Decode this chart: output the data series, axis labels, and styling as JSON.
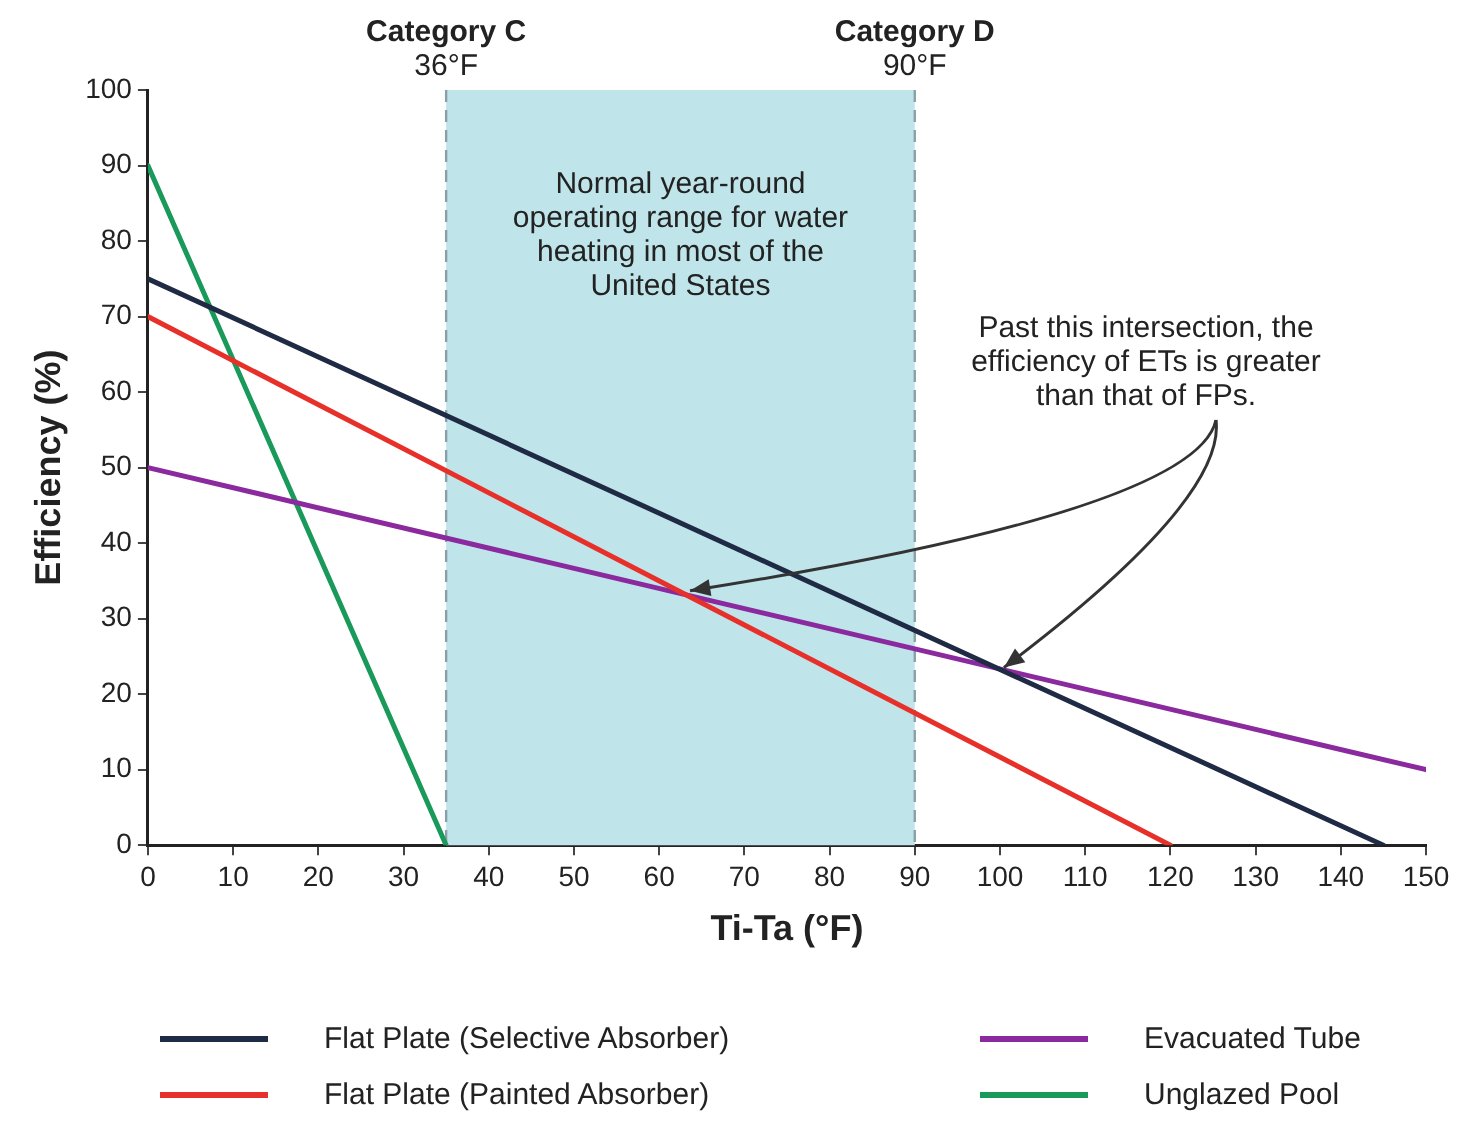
{
  "chart_data": {
    "type": "line",
    "xlabel": "Ti-Ta (°F)",
    "ylabel": "Efficiency (%)",
    "xlim": [
      0,
      150
    ],
    "xticks": [
      0,
      10,
      20,
      30,
      40,
      50,
      60,
      70,
      80,
      90,
      100,
      110,
      120,
      130,
      140,
      150
    ],
    "ylim": [
      0,
      100
    ],
    "yticks": [
      0,
      10,
      20,
      30,
      40,
      50,
      60,
      70,
      80,
      90,
      100
    ],
    "grid": false,
    "legend": "bottom",
    "marker": "none",
    "line_style": "solid",
    "series": [
      {
        "name": "Flat Plate (Selective Absorber)",
        "color": "#1f2a44",
        "x": [
          0,
          145
        ],
        "values": [
          75,
          0
        ]
      },
      {
        "name": "Flat Plate (Painted Absorber)",
        "color": "#e8302a",
        "x": [
          0,
          120
        ],
        "values": [
          70,
          0
        ]
      },
      {
        "name": "Evacuated Tube",
        "color": "#8b2a9e",
        "x": [
          0,
          150
        ],
        "values": [
          50,
          10
        ]
      },
      {
        "name": "Unglazed Pool",
        "color": "#1a9a5a",
        "x": [
          0,
          35
        ],
        "values": [
          90,
          0
        ]
      }
    ],
    "bands": [
      {
        "axis": "x",
        "from": 35,
        "to": 90,
        "color": "#bfe5ea",
        "label": "Normal year-round operating range for water heating in most of the United States"
      }
    ],
    "ref_lines": [
      {
        "axis": "x",
        "value": 35,
        "label": "Category C\n36°F",
        "line_style": "dashed",
        "color": "#8aa0a8"
      },
      {
        "axis": "x",
        "value": 90,
        "label": "Category D\n90°F",
        "line_style": "dashed",
        "color": "#8aa0a8"
      }
    ],
    "annotations": [
      {
        "text": "Past this intersection, the efficiency of ETs is greater than that of FPs.",
        "x": 100,
        "y": 23
      }
    ]
  }
}
